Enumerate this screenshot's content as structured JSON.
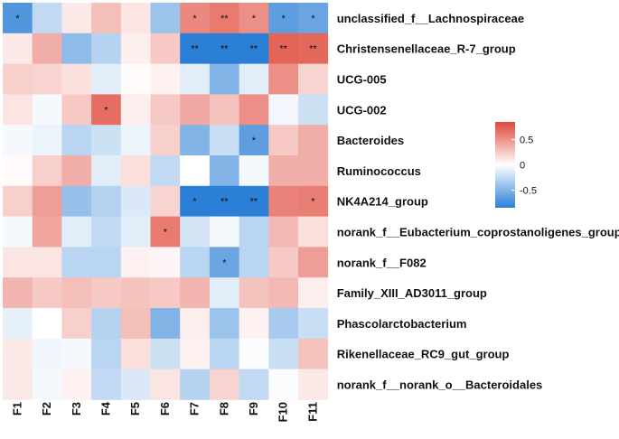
{
  "chart_data": {
    "type": "heatmap",
    "rows": [
      "unclassified_f__Lachnospiraceae",
      "Christensenellaceae_R-7_group",
      "UCG-005",
      "UCG-002",
      "Bacteroides",
      "Ruminococcus",
      "NK4A214_group",
      "norank_f__Eubacterium_coprostanoligenes_group",
      "norank_f__F082",
      "Family_XIII_AD3011_group",
      "Phascolarctobacterium",
      "Rikenellaceae_RC9_gut_group",
      "norank_f__norank_o__Bacteroidales"
    ],
    "columns": [
      "F1",
      "F2",
      "F3",
      "F4",
      "F5",
      "F6",
      "F7",
      "F8",
      "F9",
      "F10",
      "F11"
    ],
    "values": [
      [
        -0.7,
        -0.25,
        0.1,
        0.3,
        0.12,
        -0.4,
        0.55,
        0.62,
        0.52,
        -0.65,
        -0.6
      ],
      [
        0.1,
        0.38,
        -0.45,
        -0.3,
        0.08,
        0.25,
        -0.85,
        -0.85,
        -0.85,
        0.72,
        0.7
      ],
      [
        0.22,
        0.2,
        0.15,
        -0.12,
        0.02,
        0.06,
        -0.12,
        -0.5,
        -0.12,
        0.52,
        0.2
      ],
      [
        0.12,
        -0.04,
        0.25,
        0.68,
        0.08,
        0.25,
        0.4,
        0.28,
        0.52,
        -0.05,
        -0.2
      ],
      [
        -0.04,
        -0.08,
        -0.28,
        -0.2,
        -0.08,
        0.22,
        -0.5,
        -0.22,
        -0.65,
        0.25,
        0.38
      ],
      [
        0.02,
        0.22,
        0.38,
        -0.12,
        0.15,
        -0.25,
        0.0,
        -0.5,
        -0.04,
        0.38,
        0.38
      ],
      [
        0.22,
        0.45,
        -0.42,
        -0.3,
        -0.15,
        0.2,
        -0.85,
        -0.85,
        -0.85,
        0.58,
        0.6
      ],
      [
        -0.04,
        0.42,
        -0.12,
        -0.25,
        -0.12,
        0.62,
        -0.18,
        -0.04,
        -0.28,
        0.32,
        0.15
      ],
      [
        0.12,
        0.12,
        -0.28,
        -0.28,
        0.06,
        0.04,
        -0.28,
        -0.6,
        -0.28,
        0.25,
        0.45
      ],
      [
        0.35,
        0.25,
        0.3,
        0.25,
        0.28,
        0.25,
        0.35,
        -0.12,
        0.28,
        0.32,
        0.08
      ],
      [
        -0.1,
        0.0,
        0.22,
        -0.3,
        0.3,
        -0.5,
        0.08,
        -0.4,
        0.06,
        -0.35,
        -0.22
      ],
      [
        0.1,
        -0.06,
        -0.04,
        -0.28,
        0.15,
        -0.2,
        0.06,
        -0.28,
        -0.02,
        -0.22,
        0.28
      ],
      [
        0.1,
        -0.04,
        0.06,
        -0.25,
        -0.15,
        0.12,
        -0.3,
        0.2,
        -0.25,
        -0.02,
        0.1
      ]
    ],
    "significance": [
      [
        "*",
        "",
        "",
        "",
        "",
        "",
        "*",
        "**",
        "*",
        "*",
        "*"
      ],
      [
        "",
        "",
        "",
        "",
        "",
        "",
        "**",
        "**",
        "**",
        "**",
        "**"
      ],
      [
        "",
        "",
        "",
        "",
        "",
        "",
        "",
        "",
        "",
        "",
        ""
      ],
      [
        "",
        "",
        "",
        "*",
        "",
        "",
        "",
        "",
        "",
        "",
        ""
      ],
      [
        "",
        "",
        "",
        "",
        "",
        "",
        "",
        "",
        "*",
        "",
        ""
      ],
      [
        "",
        "",
        "",
        "",
        "",
        "",
        "",
        "",
        "",
        "",
        ""
      ],
      [
        "",
        "",
        "",
        "",
        "",
        "",
        "*",
        "**",
        "**",
        "",
        "*"
      ],
      [
        "",
        "",
        "",
        "",
        "",
        "*",
        "",
        "",
        "",
        "",
        ""
      ],
      [
        "",
        "",
        "",
        "",
        "",
        "",
        "",
        "*",
        "",
        "",
        ""
      ],
      [
        "",
        "",
        "",
        "",
        "",
        "",
        "",
        "",
        "",
        "",
        ""
      ],
      [
        "",
        "",
        "",
        "",
        "",
        "",
        "",
        "",
        "",
        "",
        ""
      ],
      [
        "",
        "",
        "",
        "",
        "",
        "",
        "",
        "",
        "",
        "",
        ""
      ],
      [
        "",
        "",
        "",
        "",
        "",
        "",
        "",
        "",
        "",
        "",
        ""
      ]
    ],
    "color_scale": {
      "low": "#2c7fd6",
      "mid": "#ffffff",
      "high": "#e0483a",
      "range": [
        -0.85,
        0.85
      ],
      "ticks": [
        {
          "value": 0.5,
          "label": "0.5"
        },
        {
          "value": 0,
          "label": "0"
        },
        {
          "value": -0.5,
          "label": "-0.5"
        }
      ]
    },
    "legend_position": "right"
  }
}
